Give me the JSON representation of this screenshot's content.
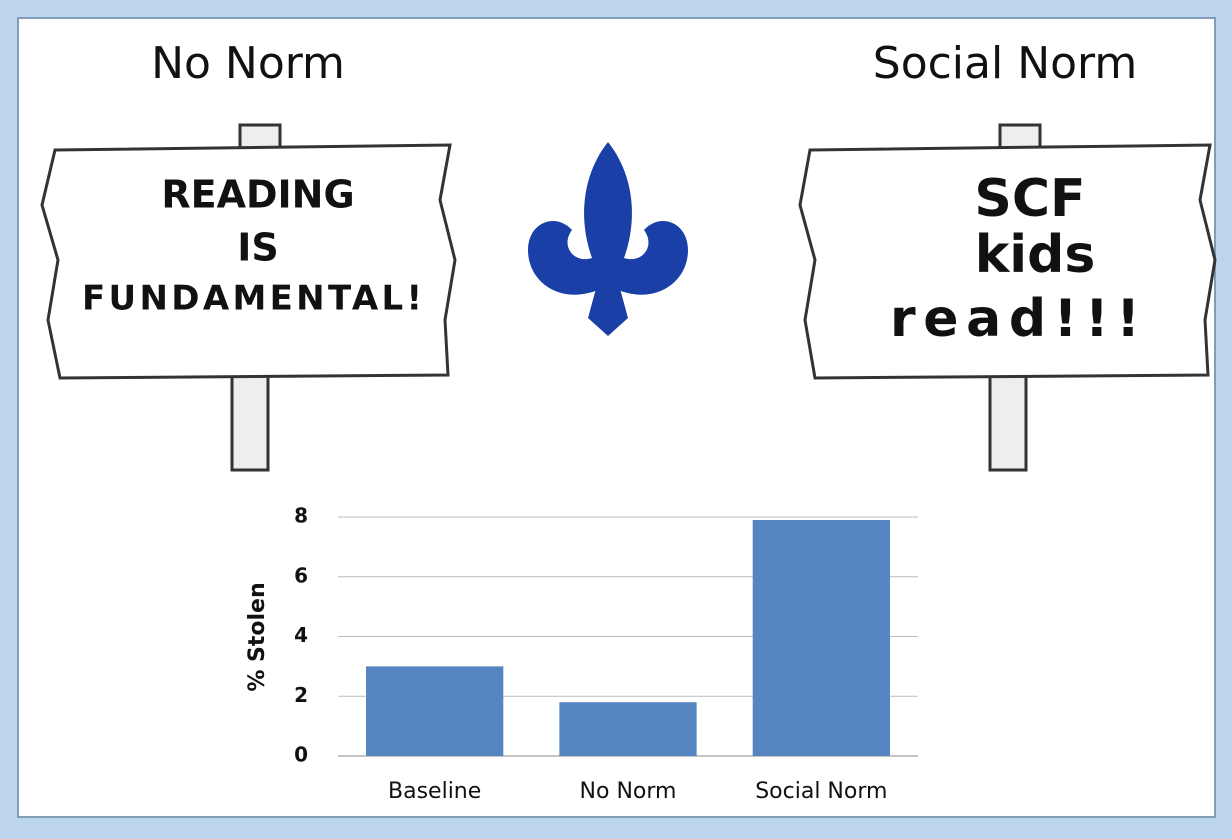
{
  "slide": {
    "left_title": "No Norm",
    "right_title": "Social Norm",
    "left_sign": [
      "READING",
      "IS",
      "FUNDAMENTAL!"
    ],
    "right_sign": [
      "SCF",
      "kids",
      "read!!!"
    ]
  },
  "chart_data": {
    "type": "bar",
    "y_label": "% Stolen",
    "categories": [
      "Baseline",
      "No Norm",
      "Social Norm"
    ],
    "values": [
      3.0,
      1.8,
      7.9
    ],
    "color": "#5585c0",
    "ylim": [
      0,
      8
    ],
    "yticks": [
      0,
      2,
      4,
      6,
      8
    ],
    "grid": true
  }
}
